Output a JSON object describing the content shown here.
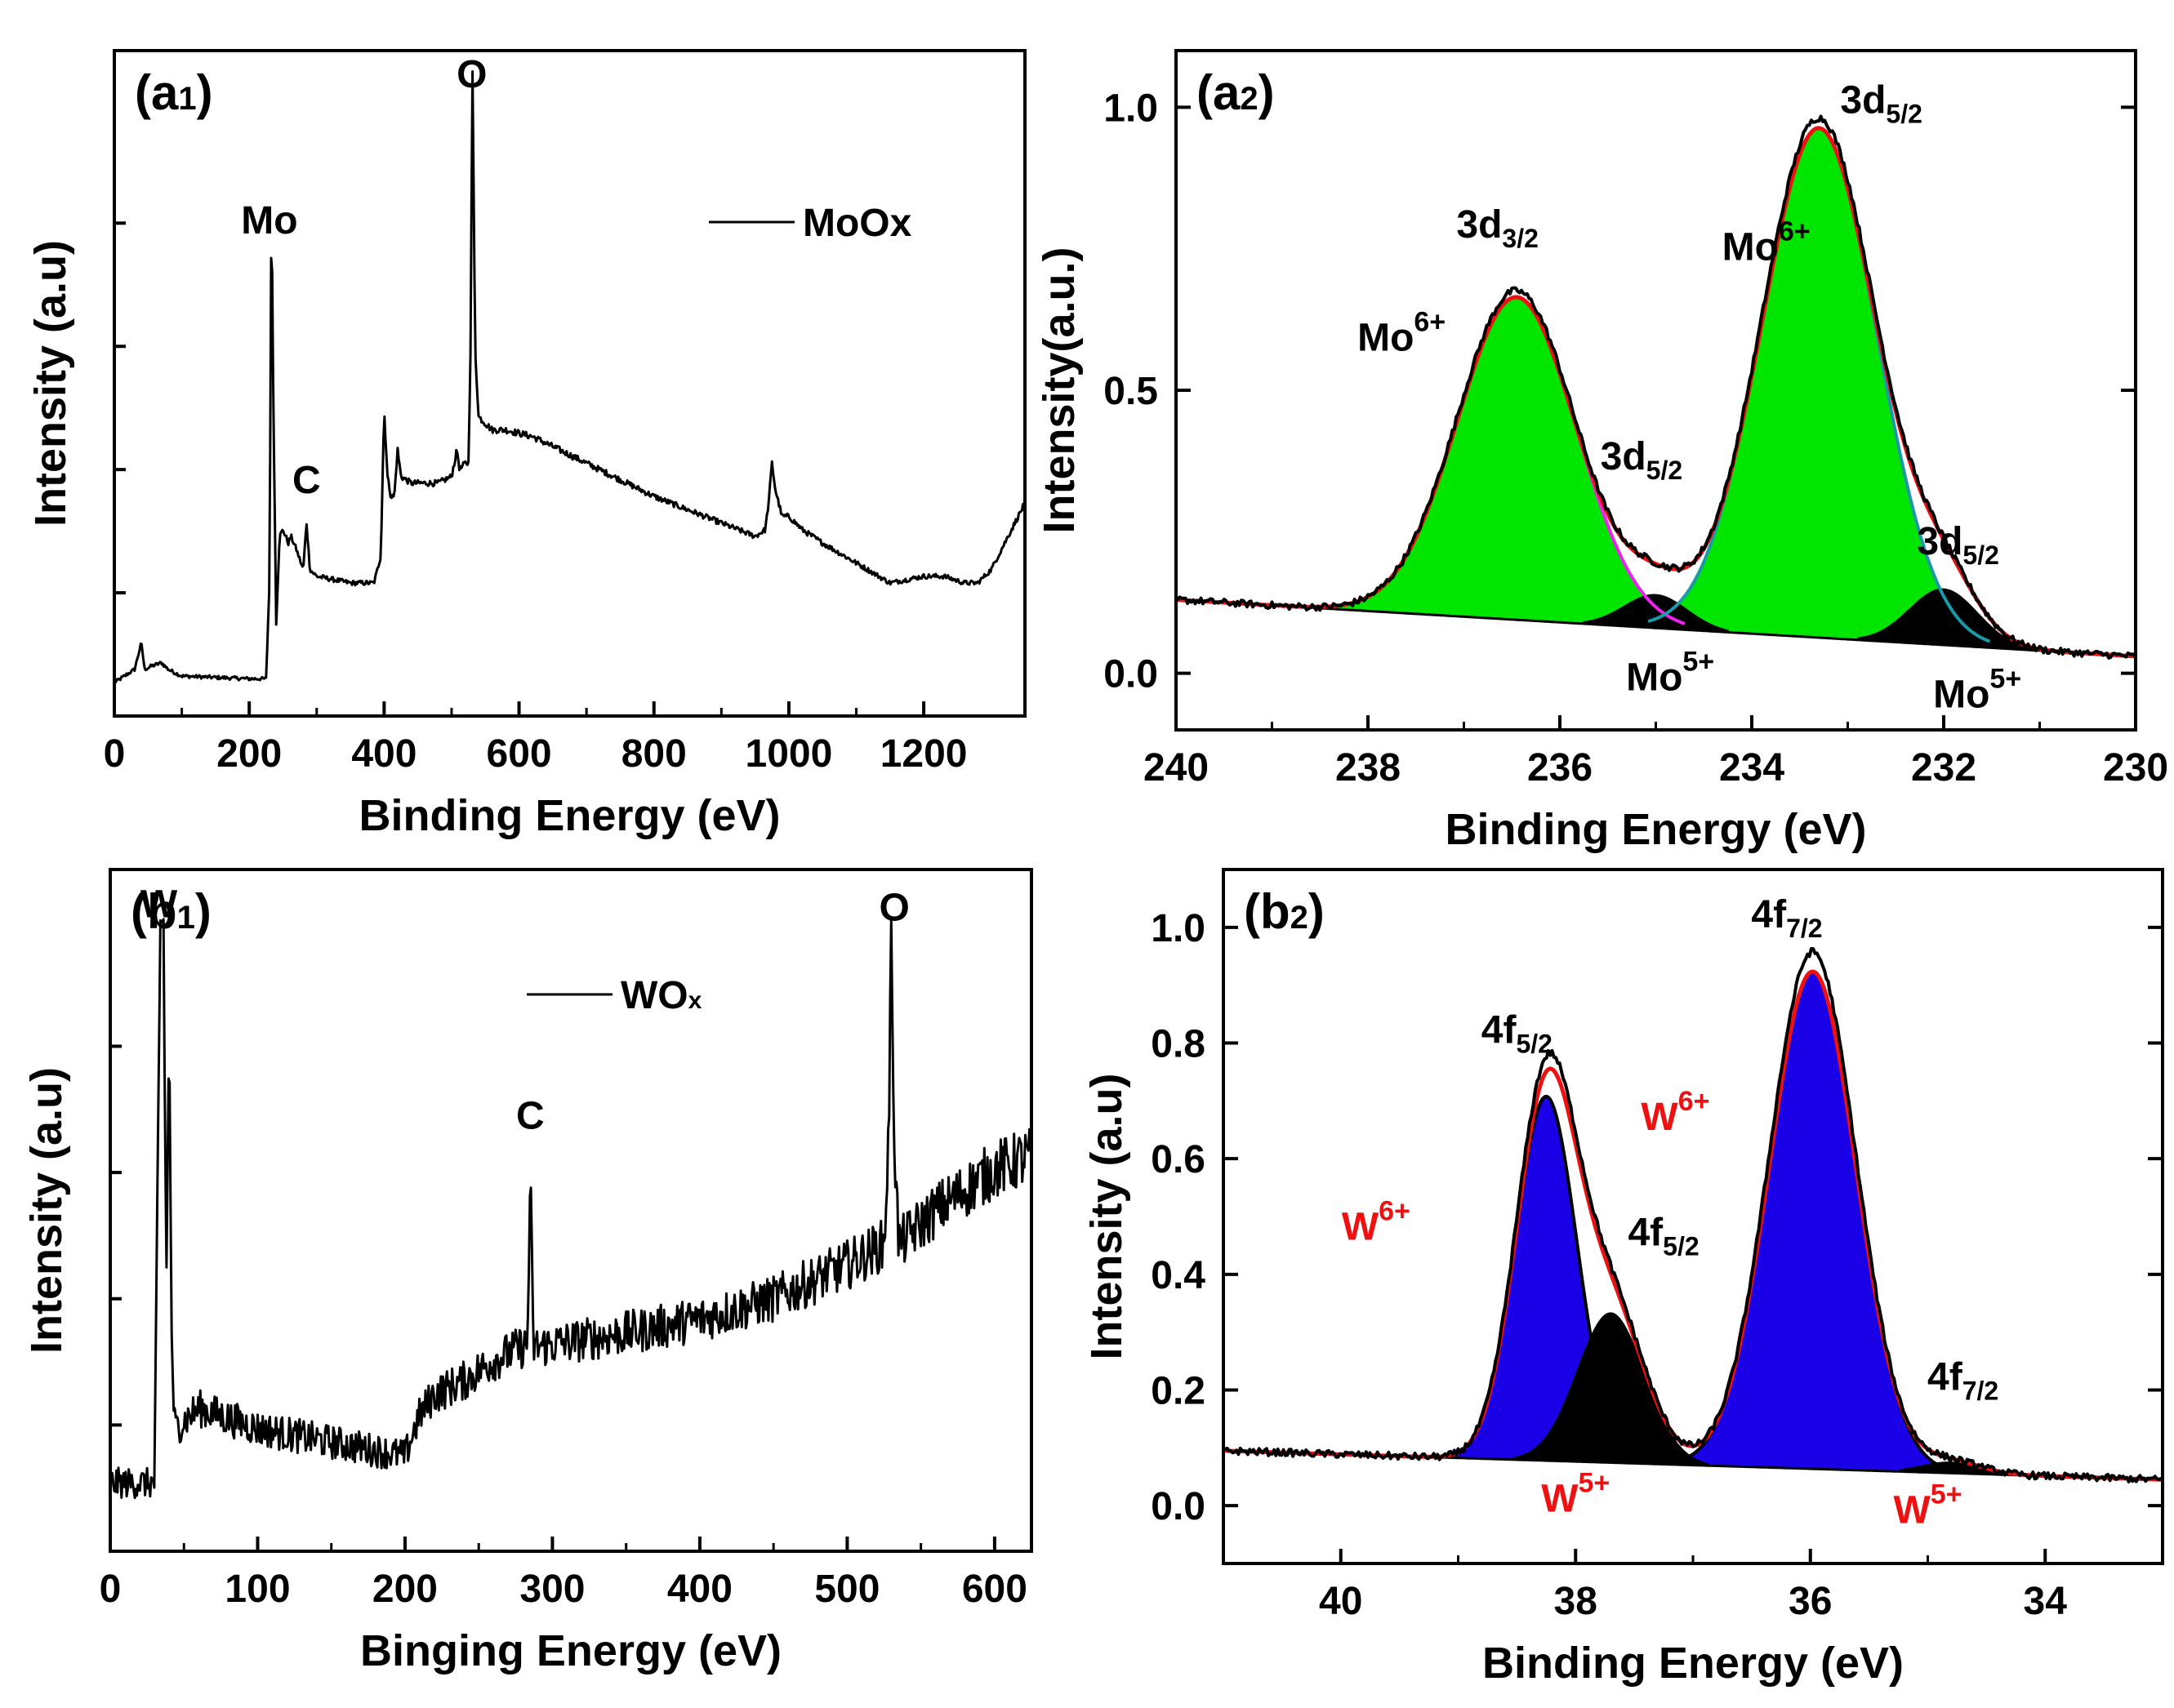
{
  "colors": {
    "green_fill": "#00e600",
    "blue_fill": "#1a00e6",
    "black": "#000000",
    "red": "#ee1111",
    "magenta": "#ee22ee",
    "teal": "#1a9aa6"
  },
  "chart_data": [
    {
      "id": "a1",
      "type": "line",
      "panel": "(a1)",
      "xlabel": "Binding Energy (eV)",
      "ylabel": "Intensity (a.u)",
      "xlim": [
        0,
        1350
      ],
      "ylim": [
        0,
        1.0
      ],
      "xticks": [
        0,
        200,
        400,
        600,
        800,
        1000,
        1200
      ],
      "legend": "MoOx",
      "annotations": [
        {
          "text": "Mo",
          "x": 230,
          "y": 0.725
        },
        {
          "text": "C",
          "x": 285,
          "y": 0.335
        },
        {
          "text": "O",
          "x": 530,
          "y": 0.945
        }
      ],
      "series": [
        {
          "name": "MoOx",
          "x": [
            0,
            15,
            30,
            40,
            45,
            55,
            70,
            80,
            100,
            150,
            200,
            225,
            230,
            233,
            236,
            240,
            245,
            250,
            258,
            262,
            270,
            280,
            285,
            290,
            300,
            350,
            385,
            395,
            400,
            405,
            410,
            415,
            420,
            425,
            440,
            480,
            500,
            508,
            512,
            520,
            525,
            528,
            531,
            535,
            540,
            560,
            580,
            620,
            700,
            800,
            900,
            950,
            965,
            970,
            975,
            980,
            990,
            1000,
            1020,
            1050,
            1100,
            1150,
            1200,
            1230,
            1260,
            1280,
            1300,
            1310,
            1320,
            1340,
            1350
          ],
          "y": [
            0.05,
            0.06,
            0.07,
            0.11,
            0.07,
            0.075,
            0.08,
            0.07,
            0.06,
            0.058,
            0.056,
            0.056,
            0.2,
            0.78,
            0.45,
            0.14,
            0.27,
            0.28,
            0.26,
            0.27,
            0.25,
            0.22,
            0.29,
            0.22,
            0.21,
            0.2,
            0.2,
            0.24,
            0.46,
            0.36,
            0.33,
            0.33,
            0.4,
            0.36,
            0.35,
            0.35,
            0.36,
            0.4,
            0.37,
            0.38,
            0.38,
            0.55,
            0.97,
            0.55,
            0.45,
            0.43,
            0.43,
            0.42,
            0.38,
            0.33,
            0.29,
            0.27,
            0.28,
            0.32,
            0.38,
            0.34,
            0.3,
            0.3,
            0.28,
            0.26,
            0.23,
            0.2,
            0.21,
            0.21,
            0.2,
            0.2,
            0.22,
            0.24,
            0.26,
            0.3,
            0.32
          ]
        }
      ]
    },
    {
      "id": "a2",
      "type": "area",
      "panel": "(a2)",
      "xlabel": "Binding Energy (eV)",
      "ylabel": "Intensity(a.u.)",
      "xlim": [
        240,
        230
      ],
      "ylim": [
        -0.1,
        1.1
      ],
      "xticks": [
        240,
        238,
        236,
        234,
        232,
        230
      ],
      "yticks": [
        0.0,
        0.5,
        1.0
      ],
      "annotations": [
        {
          "text": "3d",
          "sub": "5/2",
          "x": 232.65,
          "y": 0.99
        },
        {
          "text": "Mo",
          "sup": "6+",
          "x": 233.85,
          "y": 0.73
        },
        {
          "text": "3d",
          "sub": "3/2",
          "x": 236.65,
          "y": 0.77
        },
        {
          "text": "Mo",
          "sup": "6+",
          "x": 237.65,
          "y": 0.57
        },
        {
          "text": "3d",
          "sub": "5/2",
          "x": 235.15,
          "y": 0.36
        },
        {
          "text": "3d",
          "sub": "5/2",
          "x": 231.85,
          "y": 0.21
        },
        {
          "text": "Mo",
          "sup": "5+",
          "x": 234.85,
          "y": -0.03
        },
        {
          "text": "Mo",
          "sup": "5+",
          "x": 231.65,
          "y": -0.06
        }
      ],
      "background": {
        "start": 240,
        "end": 230,
        "y_start": 0.13,
        "y_end": 0.03
      },
      "components": [
        {
          "name": "Mo6+ 3d3/2",
          "center": 236.45,
          "height": 0.57,
          "sigma": 0.62,
          "fill": "green"
        },
        {
          "name": "Mo6+ 3d5/2",
          "center": 233.3,
          "height": 0.9,
          "sigma": 0.6,
          "fill": "green"
        },
        {
          "name": "Mo5+ 3d3/2",
          "center": 235.0,
          "height": 0.06,
          "sigma": 0.33,
          "fill": "black"
        },
        {
          "name": "Mo5+ 3d5/2",
          "center": 232.0,
          "height": 0.1,
          "sigma": 0.36,
          "fill": "black"
        }
      ]
    },
    {
      "id": "b1",
      "type": "line",
      "panel": "(b1)",
      "xlabel": "Binging Energy (eV)",
      "ylabel": "Intensity (a.u)",
      "xlim": [
        0,
        625
      ],
      "ylim": [
        0,
        1.0
      ],
      "xticks": [
        0,
        100,
        200,
        300,
        400,
        500,
        600
      ],
      "legend": "WOx",
      "annotations": [
        {
          "text": "W",
          "x": 33,
          "y": 0.93
        },
        {
          "text": "C",
          "x": 285,
          "y": 0.62
        },
        {
          "text": "O",
          "x": 532,
          "y": 0.925
        }
      ],
      "series": [
        {
          "name": "WOx",
          "x": [
            0,
            10,
            20,
            30,
            34,
            36,
            38,
            40,
            42,
            44,
            60,
            100,
            150,
            200,
            210,
            220,
            240,
            260,
            280,
            283,
            285,
            287,
            290,
            350,
            400,
            450,
            500,
            525,
            528,
            530,
            532,
            535,
            560,
            600,
            625
          ],
          "y": [
            0.1,
            0.1,
            0.1,
            0.1,
            0.9,
            0.95,
            0.4,
            0.75,
            0.25,
            0.18,
            0.21,
            0.18,
            0.16,
            0.14,
            0.2,
            0.23,
            0.25,
            0.28,
            0.3,
            0.3,
            0.55,
            0.3,
            0.3,
            0.32,
            0.34,
            0.37,
            0.42,
            0.45,
            0.6,
            0.9,
            0.6,
            0.45,
            0.5,
            0.56,
            0.58
          ]
        }
      ]
    },
    {
      "id": "b2",
      "type": "area",
      "panel": "(b2)",
      "xlabel": "Binding Energy (eV)",
      "ylabel": "Intensity (a.u)",
      "xlim": [
        41,
        33
      ],
      "ylim": [
        -0.1,
        1.1
      ],
      "xticks": [
        40,
        38,
        36,
        34
      ],
      "yticks": [
        0.0,
        0.2,
        0.4,
        0.6,
        0.8,
        1.0
      ],
      "annotations": [
        {
          "text": "4f",
          "sub": "7/2",
          "x": 36.2,
          "y": 1.0
        },
        {
          "text": "4f",
          "sub": "5/2",
          "x": 38.5,
          "y": 0.8
        },
        {
          "text": "W",
          "sup": "6+",
          "x": 37.15,
          "y": 0.65
        },
        {
          "text": "W",
          "sup": "6+",
          "x": 39.7,
          "y": 0.46
        },
        {
          "text": "4f",
          "sub": "5/2",
          "x": 37.25,
          "y": 0.45
        },
        {
          "text": "4f",
          "sub": "7/2",
          "x": 34.7,
          "y": 0.2
        },
        {
          "text": "W",
          "sup": "5+",
          "x": 38.0,
          "y": -0.01
        },
        {
          "text": "W",
          "sup": "5+",
          "x": 35.0,
          "y": -0.03
        }
      ],
      "background": {
        "start": 41,
        "end": 33,
        "y_start": 0.095,
        "y_end": 0.045
      },
      "components": [
        {
          "name": "W6+ 4f5/2",
          "center": 38.25,
          "height": 0.63,
          "sigma": 0.26,
          "fill": "blue"
        },
        {
          "name": "W6+ 4f7/2",
          "center": 35.98,
          "height": 0.86,
          "sigma": 0.37,
          "fill": "blue"
        },
        {
          "name": "W5+ 4f5/2",
          "center": 37.7,
          "height": 0.26,
          "sigma": 0.29,
          "fill": "black"
        },
        {
          "name": "W5+ 4f7/2",
          "center": 34.8,
          "height": 0.02,
          "sigma": 0.25,
          "fill": "black"
        }
      ]
    }
  ]
}
